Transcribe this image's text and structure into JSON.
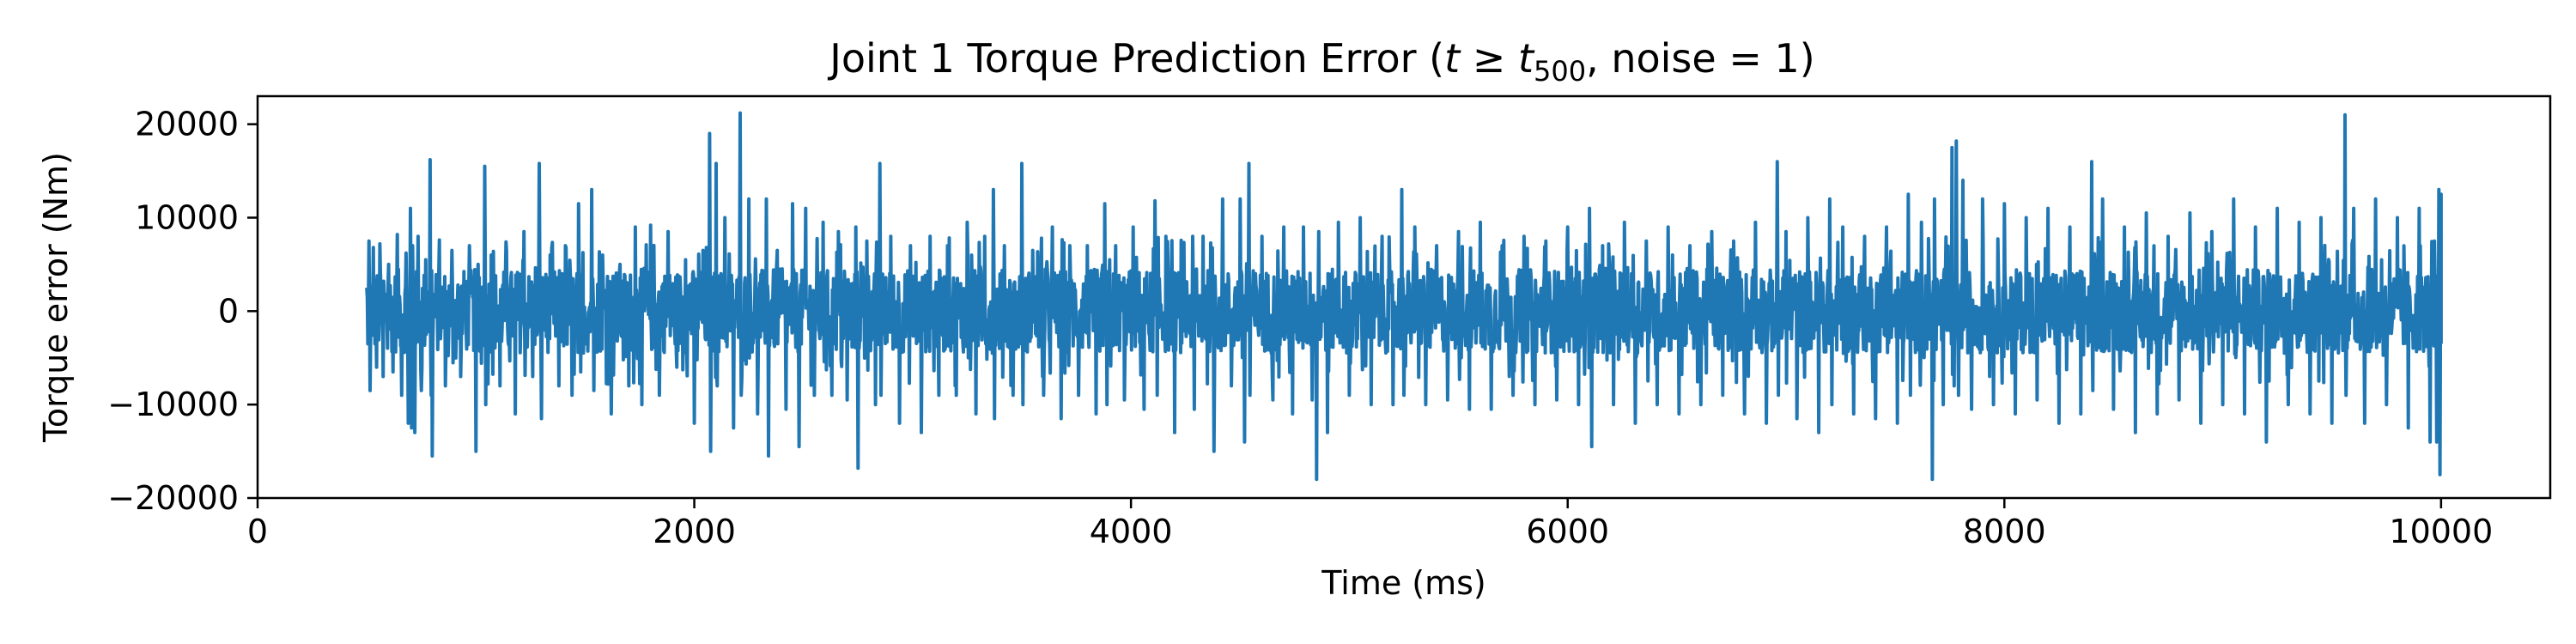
{
  "chart_data": {
    "type": "line",
    "title_parts": {
      "prefix": "Joint 1 Torque Prediction Error (",
      "t": "t",
      "geq": " ≥ ",
      "t2": "t",
      "subscript": "500",
      "suffix": ", noise = 1)"
    },
    "xlabel": "Time (ms)",
    "ylabel": "Torque error (Nm)",
    "xlim": [
      0,
      10500
    ],
    "ylim": [
      -20000,
      23000
    ],
    "xticks": [
      0,
      2000,
      4000,
      6000,
      8000,
      10000
    ],
    "yticks": [
      -20000,
      -10000,
      0,
      10000,
      20000
    ],
    "xtick_labels": [
      "0",
      "2000",
      "4000",
      "6000",
      "8000",
      "10000"
    ],
    "ytick_labels": [
      "−20000",
      "−10000",
      "0",
      "10000",
      "20000"
    ],
    "grid": false,
    "series": [
      {
        "color": "#1f77b4",
        "x_range": [
          500,
          10000
        ],
        "points": [
          [
            500,
            2500
          ],
          [
            505,
            -3500
          ],
          [
            510,
            7500
          ],
          [
            515,
            -8500
          ],
          [
            530,
            6800
          ],
          [
            545,
            -6000
          ],
          [
            560,
            7200
          ],
          [
            575,
            -7000
          ],
          [
            600,
            5000
          ],
          [
            620,
            -6500
          ],
          [
            640,
            8200
          ],
          [
            660,
            -9000
          ],
          [
            680,
            6200
          ],
          [
            690,
            -12000
          ],
          [
            700,
            11000
          ],
          [
            705,
            -12500
          ],
          [
            710,
            7000
          ],
          [
            720,
            -13000
          ],
          [
            735,
            8000
          ],
          [
            750,
            -8500
          ],
          [
            770,
            5500
          ],
          [
            790,
            16200
          ],
          [
            795,
            -9000
          ],
          [
            800,
            -15500
          ],
          [
            830,
            4500
          ],
          [
            860,
            -8000
          ],
          [
            890,
            6500
          ],
          [
            930,
            -7000
          ],
          [
            970,
            7000
          ],
          [
            1000,
            -15000
          ],
          [
            1010,
            5000
          ],
          [
            1040,
            15500
          ],
          [
            1045,
            -10000
          ],
          [
            1070,
            6000
          ],
          [
            1110,
            -8000
          ],
          [
            1140,
            6500
          ],
          [
            1180,
            -11000
          ],
          [
            1220,
            8500
          ],
          [
            1260,
            -7000
          ],
          [
            1290,
            15800
          ],
          [
            1300,
            -11500
          ],
          [
            1340,
            6000
          ],
          [
            1380,
            -8000
          ],
          [
            1410,
            7000
          ],
          [
            1440,
            -9000
          ],
          [
            1470,
            11500
          ],
          [
            1480,
            -6500
          ],
          [
            1530,
            13000
          ],
          [
            1540,
            -8500
          ],
          [
            1580,
            6000
          ],
          [
            1620,
            -11000
          ],
          [
            1660,
            5000
          ],
          [
            1700,
            -8000
          ],
          [
            1730,
            9000
          ],
          [
            1760,
            -10000
          ],
          [
            1800,
            9200
          ],
          [
            1840,
            -9000
          ],
          [
            1880,
            8500
          ],
          [
            1920,
            -6000
          ],
          [
            1960,
            5500
          ],
          [
            2000,
            -12000
          ],
          [
            2040,
            6500
          ],
          [
            2070,
            19000
          ],
          [
            2075,
            -15000
          ],
          [
            2100,
            15800
          ],
          [
            2105,
            -8000
          ],
          [
            2140,
            10000
          ],
          [
            2180,
            -12500
          ],
          [
            2210,
            21200
          ],
          [
            2215,
            -9000
          ],
          [
            2250,
            12000
          ],
          [
            2290,
            -11000
          ],
          [
            2330,
            12000
          ],
          [
            2340,
            -15500
          ],
          [
            2380,
            6500
          ],
          [
            2420,
            -10500
          ],
          [
            2450,
            11500
          ],
          [
            2480,
            -14500
          ],
          [
            2510,
            11000
          ],
          [
            2550,
            -9000
          ],
          [
            2590,
            9500
          ],
          [
            2630,
            -9000
          ],
          [
            2660,
            8500
          ],
          [
            2700,
            -9500
          ],
          [
            2740,
            9000
          ],
          [
            2750,
            -16800
          ],
          [
            2790,
            7500
          ],
          [
            2830,
            -10000
          ],
          [
            2850,
            15800
          ],
          [
            2855,
            -9000
          ],
          [
            2900,
            8000
          ],
          [
            2940,
            -12000
          ],
          [
            2990,
            7000
          ],
          [
            3040,
            -13000
          ],
          [
            3080,
            8000
          ],
          [
            3120,
            -9000
          ],
          [
            3160,
            7000
          ],
          [
            3200,
            -9000
          ],
          [
            3250,
            9500
          ],
          [
            3290,
            -11000
          ],
          [
            3330,
            8000
          ],
          [
            3370,
            13000
          ],
          [
            3375,
            -11500
          ],
          [
            3420,
            7000
          ],
          [
            3460,
            -9000
          ],
          [
            3500,
            15800
          ],
          [
            3505,
            -10000
          ],
          [
            3550,
            6500
          ],
          [
            3600,
            -9000
          ],
          [
            3640,
            9000
          ],
          [
            3680,
            -11500
          ],
          [
            3720,
            7000
          ],
          [
            3760,
            -9000
          ],
          [
            3800,
            7000
          ],
          [
            3840,
            -11000
          ],
          [
            3880,
            11500
          ],
          [
            3890,
            -10000
          ],
          [
            3930,
            7000
          ],
          [
            3970,
            -9500
          ],
          [
            4010,
            9000
          ],
          [
            4060,
            -10500
          ],
          [
            4110,
            11800
          ],
          [
            4120,
            -9000
          ],
          [
            4160,
            8000
          ],
          [
            4200,
            -13000
          ],
          [
            4240,
            6500
          ],
          [
            4290,
            -10500
          ],
          [
            4330,
            8000
          ],
          [
            4380,
            -15000
          ],
          [
            4420,
            12000
          ],
          [
            4460,
            -8000
          ],
          [
            4500,
            12000
          ],
          [
            4520,
            -14000
          ],
          [
            4540,
            15800
          ],
          [
            4545,
            -9000
          ],
          [
            4600,
            8000
          ],
          [
            4650,
            -9500
          ],
          [
            4700,
            9000
          ],
          [
            4740,
            -11000
          ],
          [
            4790,
            9000
          ],
          [
            4830,
            -9500
          ],
          [
            4850,
            -18000
          ],
          [
            4860,
            8500
          ],
          [
            4900,
            -13000
          ],
          [
            4950,
            9500
          ],
          [
            5000,
            -9000
          ],
          [
            5050,
            10000
          ],
          [
            5100,
            -10000
          ],
          [
            5150,
            8000
          ],
          [
            5200,
            -10000
          ],
          [
            5240,
            13000
          ],
          [
            5250,
            -9000
          ],
          [
            5300,
            9000
          ],
          [
            5350,
            -10000
          ],
          [
            5400,
            7000
          ],
          [
            5450,
            -9500
          ],
          [
            5500,
            8500
          ],
          [
            5550,
            -10500
          ],
          [
            5600,
            9500
          ],
          [
            5650,
            -10500
          ],
          [
            5700,
            7000
          ],
          [
            5750,
            -9000
          ],
          [
            5800,
            8000
          ],
          [
            5850,
            -10000
          ],
          [
            5900,
            7500
          ],
          [
            5950,
            -9500
          ],
          [
            6000,
            9000
          ],
          [
            6050,
            -10000
          ],
          [
            6100,
            11000
          ],
          [
            6110,
            -14500
          ],
          [
            6160,
            7000
          ],
          [
            6210,
            -10000
          ],
          [
            6260,
            9500
          ],
          [
            6310,
            -12000
          ],
          [
            6360,
            7500
          ],
          [
            6410,
            -10000
          ],
          [
            6460,
            9000
          ],
          [
            6510,
            -11000
          ],
          [
            6560,
            7000
          ],
          [
            6610,
            -10000
          ],
          [
            6660,
            8500
          ],
          [
            6710,
            -9000
          ],
          [
            6760,
            7500
          ],
          [
            6810,
            -11000
          ],
          [
            6860,
            9500
          ],
          [
            6910,
            -12000
          ],
          [
            6960,
            16000
          ],
          [
            6965,
            -9000
          ],
          [
            7000,
            8500
          ],
          [
            7050,
            -11500
          ],
          [
            7100,
            10000
          ],
          [
            7150,
            -13000
          ],
          [
            7200,
            12000
          ],
          [
            7210,
            -10000
          ],
          [
            7260,
            9000
          ],
          [
            7310,
            -11000
          ],
          [
            7360,
            8000
          ],
          [
            7410,
            -11500
          ],
          [
            7460,
            9000
          ],
          [
            7510,
            -12000
          ],
          [
            7560,
            12500
          ],
          [
            7570,
            -9000
          ],
          [
            7620,
            9500
          ],
          [
            7670,
            -18000
          ],
          [
            7680,
            12000
          ],
          [
            7720,
            -10000
          ],
          [
            7760,
            17500
          ],
          [
            7770,
            -8000
          ],
          [
            7780,
            18200
          ],
          [
            7790,
            -9000
          ],
          [
            7810,
            14000
          ],
          [
            7850,
            -10500
          ],
          [
            7900,
            12000
          ],
          [
            7950,
            -10000
          ],
          [
            8000,
            11500
          ],
          [
            8050,
            -11000
          ],
          [
            8100,
            10000
          ],
          [
            8150,
            -9500
          ],
          [
            8200,
            11000
          ],
          [
            8250,
            -12000
          ],
          [
            8300,
            9000
          ],
          [
            8350,
            -11000
          ],
          [
            8400,
            16000
          ],
          [
            8405,
            -8500
          ],
          [
            8450,
            12000
          ],
          [
            8500,
            -10500
          ],
          [
            8550,
            9000
          ],
          [
            8600,
            -13000
          ],
          [
            8650,
            10500
          ],
          [
            8700,
            -11000
          ],
          [
            8750,
            8000
          ],
          [
            8800,
            -9500
          ],
          [
            8850,
            10500
          ],
          [
            8900,
            -12000
          ],
          [
            8950,
            8500
          ],
          [
            9000,
            -10000
          ],
          [
            9050,
            12000
          ],
          [
            9100,
            -11000
          ],
          [
            9150,
            9000
          ],
          [
            9200,
            -14000
          ],
          [
            9250,
            11000
          ],
          [
            9300,
            -10000
          ],
          [
            9350,
            9500
          ],
          [
            9400,
            -11000
          ],
          [
            9450,
            10000
          ],
          [
            9500,
            -12000
          ],
          [
            9560,
            21000
          ],
          [
            9565,
            -9000
          ],
          [
            9600,
            11000
          ],
          [
            9650,
            -12000
          ],
          [
            9700,
            12000
          ],
          [
            9750,
            -10000
          ],
          [
            9800,
            10000
          ],
          [
            9850,
            -12500
          ],
          [
            9900,
            11000
          ],
          [
            9950,
            -14000
          ],
          [
            9970,
            7500
          ],
          [
            9980,
            -14000
          ],
          [
            9990,
            13000
          ],
          [
            9995,
            -17500
          ],
          [
            10000,
            12500
          ],
          [
            10000,
            -3500
          ]
        ]
      }
    ]
  }
}
